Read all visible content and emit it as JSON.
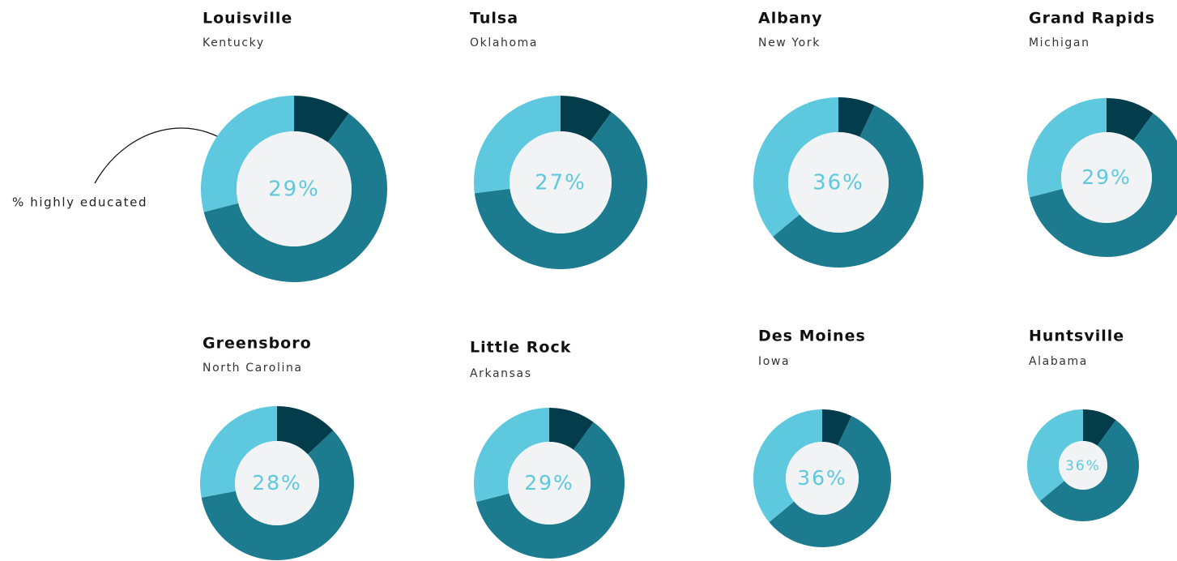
{
  "chart_data": [
    {
      "type": "donut",
      "title": "Louisville",
      "subtitle": "Kentucky",
      "values": [
        10,
        61,
        29
      ],
      "value_labels": [
        null,
        null,
        "29%"
      ],
      "colors": [
        "#033c4b",
        "#1c7b8e",
        "#5ec8df"
      ],
      "annotation": "% highly educated"
    },
    {
      "type": "donut",
      "title": "Tulsa",
      "subtitle": "Oklahoma",
      "values": [
        10,
        63,
        27
      ],
      "value_labels": [
        null,
        null,
        "27%"
      ],
      "colors": [
        "#033c4b",
        "#1c7b8e",
        "#5ec8df"
      ]
    },
    {
      "type": "donut",
      "title": "Albany",
      "subtitle": "New York",
      "values": [
        7,
        57,
        36
      ],
      "value_labels": [
        null,
        null,
        "36%"
      ],
      "colors": [
        "#033c4b",
        "#1c7b8e",
        "#5ec8df"
      ]
    },
    {
      "type": "donut",
      "title": "Grand Rapids",
      "subtitle": "Michigan",
      "values": [
        10,
        61,
        29
      ],
      "value_labels": [
        null,
        null,
        "29%"
      ],
      "colors": [
        "#033c4b",
        "#1c7b8e",
        "#5ec8df"
      ]
    },
    {
      "type": "donut",
      "title": "Greensboro",
      "subtitle": "North Carolina",
      "values": [
        13,
        59,
        28
      ],
      "value_labels": [
        null,
        null,
        "28%"
      ],
      "colors": [
        "#033c4b",
        "#1c7b8e",
        "#5ec8df"
      ]
    },
    {
      "type": "donut",
      "title": "Little Rock",
      "subtitle": "Arkansas",
      "values": [
        10,
        61,
        29
      ],
      "value_labels": [
        null,
        null,
        "29%"
      ],
      "colors": [
        "#033c4b",
        "#1c7b8e",
        "#5ec8df"
      ]
    },
    {
      "type": "donut",
      "title": "Des Moines",
      "subtitle": "Iowa",
      "values": [
        7,
        57,
        36
      ],
      "value_labels": [
        null,
        null,
        "36%"
      ],
      "colors": [
        "#033c4b",
        "#1c7b8e",
        "#5ec8df"
      ]
    },
    {
      "type": "donut",
      "title": "Huntsville",
      "subtitle": "Alabama",
      "values": [
        10,
        54,
        36
      ],
      "value_labels": [
        null,
        null,
        "36%"
      ],
      "colors": [
        "#033c4b",
        "#1c7b8e",
        "#5ec8df"
      ]
    }
  ]
}
